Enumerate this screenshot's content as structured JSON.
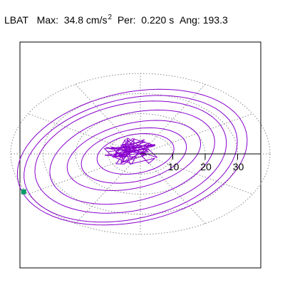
{
  "header": {
    "station": "LBAT",
    "max_label": "Max:",
    "max_value": "34.8 cm/s",
    "max_unit_exp": "2",
    "per_label": "Per:",
    "per_value": "0.220 s",
    "ang_label": "Ang:",
    "ang_value": "193.3"
  },
  "chart_data": {
    "type": "scatter",
    "title": "LBAT  Max: 34.8 cm/s2  Per: 0.220 s  Ang: 193.3",
    "polar_grid": true,
    "radial_ticks": [
      10,
      20,
      30
    ],
    "radial_tick_labels": [
      "10",
      "20",
      "30"
    ],
    "rlim": [
      0,
      40
    ],
    "angle_spokes_deg": [
      0,
      30,
      60,
      90,
      120,
      150,
      180,
      210,
      240,
      270,
      300,
      330
    ],
    "max_amplitude": 34.8,
    "orbit_series": {
      "name": "",
      "note_units": "cm/s2",
      "ellipses": [
        {
          "a": 36.0,
          "b": 20.0,
          "cx": -2.5,
          "cy": -1.0,
          "tilt_deg": 12
        },
        {
          "a": 33.5,
          "b": 18.5,
          "cx": -3.0,
          "cy": -1.5,
          "tilt_deg": 13
        },
        {
          "a": 30.0,
          "b": 16.5,
          "cx": -3.0,
          "cy": -1.0,
          "tilt_deg": 12
        },
        {
          "a": 26.0,
          "b": 13.5,
          "cx": -2.5,
          "cy": -1.0,
          "tilt_deg": 14
        },
        {
          "a": 21.0,
          "b": 10.0,
          "cx": -2.0,
          "cy": -0.5,
          "tilt_deg": 13
        },
        {
          "a": 16.5,
          "b": 8.0,
          "cx": -2.0,
          "cy": -0.5,
          "tilt_deg": 12
        },
        {
          "a": 12.0,
          "b": 6.0,
          "cx": -1.5,
          "cy": 0.0,
          "tilt_deg": 10
        }
      ],
      "noise_cluster": {
        "center": [
          -3.0,
          0.5
        ],
        "spread": [
          9.0,
          4.5
        ],
        "count": 60
      }
    },
    "end_marker": {
      "x": -36.0,
      "y": -7.3,
      "color": "#009966"
    },
    "colors": {
      "orbit": "#8800cc",
      "grid": "#888888",
      "axis": "#000000"
    }
  }
}
